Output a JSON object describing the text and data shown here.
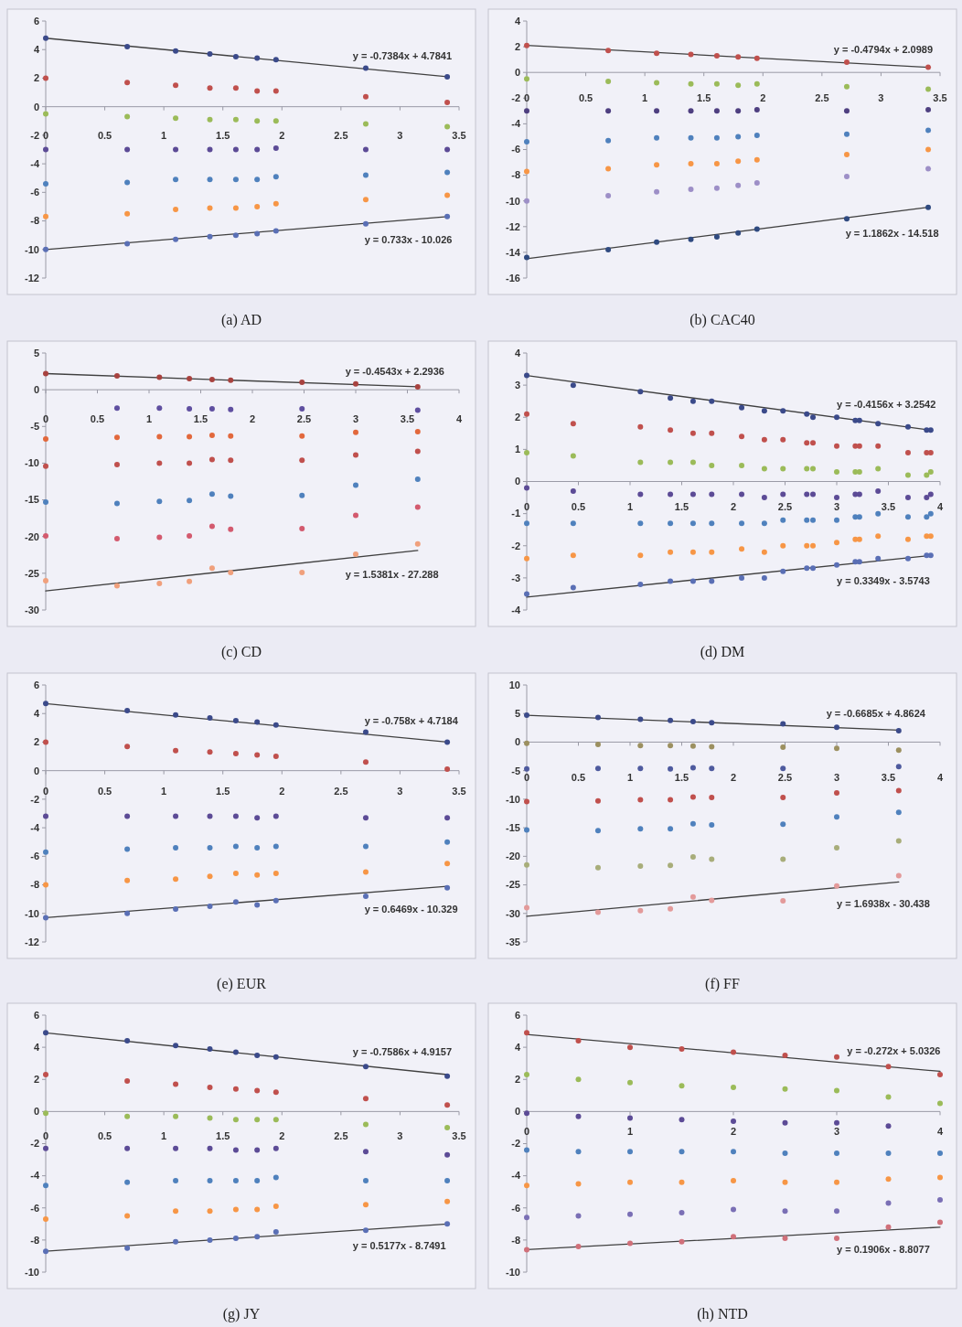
{
  "chart_data": [
    {
      "type": "scatter",
      "title": "(a) AD",
      "x": [
        0,
        0.69,
        1.1,
        1.39,
        1.61,
        1.79,
        1.95,
        2.71,
        3.4
      ],
      "xlim": [
        0,
        3.5
      ],
      "xticks": [
        0,
        0.5,
        1,
        1.5,
        2,
        2.5,
        3,
        3.5
      ],
      "ylim": [
        -12,
        6
      ],
      "yticks": [
        -12,
        -10,
        -8,
        -6,
        -4,
        -2,
        0,
        2,
        4,
        6
      ],
      "marker": "circle",
      "annotations": [
        {
          "text": "y = -0.7384x + 4.7841",
          "x": 2.6,
          "y": 2.7
        },
        {
          "text": "y = 0.733x - 10.026",
          "x": 2.7,
          "y": -8.2
        }
      ],
      "series": [
        {
          "type": "line",
          "marker": "none",
          "x": [
            0,
            3.4
          ],
          "values": [
            4.8,
            2.1
          ],
          "color": "#404040"
        },
        {
          "type": "line",
          "marker": "none",
          "x": [
            0,
            3.4
          ],
          "values": [
            -10.0,
            -7.7
          ],
          "color": "#404040"
        },
        {
          "color": "#3b4a8a",
          "values": [
            4.8,
            4.2,
            3.9,
            3.7,
            3.5,
            3.4,
            3.3,
            2.7,
            2.1
          ]
        },
        {
          "color": "#c0504d",
          "values": [
            2.0,
            1.7,
            1.5,
            1.3,
            1.3,
            1.1,
            1.1,
            0.7,
            0.3
          ]
        },
        {
          "color": "#9bbb59",
          "values": [
            -0.5,
            -0.7,
            -0.8,
            -0.9,
            -0.9,
            -1.0,
            -1.0,
            -1.2,
            -1.4
          ]
        },
        {
          "color": "#5c4b96",
          "values": [
            -3.0,
            -3.0,
            -3.0,
            -3.0,
            -3.0,
            -3.0,
            -2.9,
            -3.0,
            -3.0
          ]
        },
        {
          "color": "#4f81bd",
          "values": [
            -5.4,
            -5.3,
            -5.1,
            -5.1,
            -5.1,
            -5.1,
            -4.9,
            -4.8,
            -4.6
          ]
        },
        {
          "color": "#f79646",
          "values": [
            -7.7,
            -7.5,
            -7.2,
            -7.1,
            -7.1,
            -7.0,
            -6.8,
            -6.5,
            -6.2
          ]
        },
        {
          "color": "#5a6fb5",
          "values": [
            -10.0,
            -9.6,
            -9.3,
            -9.1,
            -9.0,
            -8.9,
            -8.7,
            -8.2,
            -7.7
          ]
        }
      ]
    },
    {
      "type": "scatter",
      "title": "(b) CAC40",
      "x": [
        0,
        0.69,
        1.1,
        1.39,
        1.61,
        1.79,
        1.95,
        2.71,
        3.4
      ],
      "xlim": [
        0,
        3.5
      ],
      "xticks": [
        0,
        0.5,
        1,
        1.5,
        2,
        2.5,
        3,
        3.5
      ],
      "ylim": [
        -16,
        4
      ],
      "yticks": [
        -16,
        -14,
        -12,
        -10,
        -8,
        -6,
        -4,
        -2,
        0,
        2,
        4
      ],
      "marker": "circle",
      "annotations": [
        {
          "text": "y = -0.4794x + 2.0989",
          "x": 2.6,
          "y": 0.8
        },
        {
          "text": "y = 1.1862x - 14.518",
          "x": 2.7,
          "y": -11.3
        }
      ],
      "series": [
        {
          "type": "line",
          "marker": "none",
          "x": [
            0,
            3.4
          ],
          "values": [
            2.1,
            0.4
          ],
          "color": "#404040"
        },
        {
          "type": "line",
          "marker": "none",
          "x": [
            0,
            3.4
          ],
          "values": [
            -14.5,
            -10.5
          ],
          "color": "#404040"
        },
        {
          "color": "#c0504d",
          "values": [
            2.1,
            1.7,
            1.5,
            1.4,
            1.3,
            1.2,
            1.1,
            0.8,
            0.4
          ]
        },
        {
          "color": "#9bbb59",
          "values": [
            -0.5,
            -0.7,
            -0.8,
            -0.9,
            -0.9,
            -1.0,
            -0.9,
            -1.1,
            -1.3
          ]
        },
        {
          "color": "#4e3f80",
          "values": [
            -3.0,
            -3.0,
            -3.0,
            -3.0,
            -3.0,
            -3.0,
            -2.9,
            -3.0,
            -2.9
          ]
        },
        {
          "color": "#4f81bd",
          "values": [
            -5.4,
            -5.3,
            -5.1,
            -5.1,
            -5.1,
            -5.0,
            -4.9,
            -4.8,
            -4.5
          ]
        },
        {
          "color": "#f79646",
          "values": [
            -7.7,
            -7.5,
            -7.2,
            -7.1,
            -7.1,
            -6.9,
            -6.8,
            -6.4,
            -6.0
          ]
        },
        {
          "color": "#9d8fc7",
          "values": [
            -10.0,
            -9.6,
            -9.3,
            -9.1,
            -9.0,
            -8.8,
            -8.6,
            -8.1,
            -7.5
          ]
        },
        {
          "color": "#2f4a80",
          "values": [
            -14.4,
            -13.8,
            -13.2,
            -13.0,
            -12.8,
            -12.5,
            -12.2,
            -11.4,
            -10.5
          ]
        }
      ]
    },
    {
      "type": "scatter",
      "title": "(c) CD",
      "x": [
        0,
        0.69,
        1.1,
        1.39,
        1.61,
        1.79,
        2.48,
        3,
        3.6
      ],
      "xlim": [
        0,
        4
      ],
      "xticks": [
        0,
        0.5,
        1,
        1.5,
        2,
        2.5,
        3,
        3.5,
        4
      ],
      "ylim": [
        -30,
        5
      ],
      "yticks": [
        -30,
        -25,
        -20,
        -15,
        -10,
        -5,
        0,
        5
      ],
      "marker": "circle",
      "annotations": [
        {
          "text": "y = -0.4543x + 2.2936",
          "x": 2.9,
          "y": 0.8
        },
        {
          "text": "y = 1.5381x - 27.288",
          "x": 2.9,
          "y": -23.0
        }
      ],
      "series": [
        {
          "type": "line",
          "marker": "none",
          "x": [
            0,
            3.6
          ],
          "values": [
            2.2,
            0.4
          ],
          "color": "#404040"
        },
        {
          "type": "line",
          "marker": "none",
          "x": [
            0,
            3.6
          ],
          "values": [
            -27.4,
            -21.9
          ],
          "color": "#404040"
        },
        {
          "color": "#a8423f",
          "values": [
            2.2,
            1.9,
            1.7,
            1.5,
            1.4,
            1.3,
            1.0,
            0.8,
            0.4
          ]
        },
        {
          "color": "#5f4fa0",
          "values": [
            null,
            -2.5,
            -2.5,
            -2.6,
            -2.6,
            -2.7,
            -2.6,
            null,
            -2.8
          ]
        },
        {
          "color": "#e2683c",
          "values": [
            -6.7,
            -6.5,
            -6.4,
            -6.4,
            -6.2,
            -6.3,
            -6.3,
            -5.8,
            -5.7
          ]
        },
        {
          "color": "#c0504d",
          "values": [
            -10.4,
            -10.2,
            -10.0,
            -10.0,
            -9.5,
            -9.6,
            -9.6,
            -8.9,
            -8.4
          ]
        },
        {
          "color": "#4f81bd",
          "values": [
            -15.3,
            -15.5,
            -15.2,
            -15.1,
            -14.2,
            -14.5,
            -14.4,
            -13.0,
            -12.2
          ]
        },
        {
          "color": "#d35a6e",
          "values": [
            -19.9,
            -20.3,
            -20.1,
            -19.9,
            -18.6,
            -19.0,
            -18.9,
            -17.1,
            -16.0
          ]
        },
        {
          "color": "#f0a07c",
          "values": [
            -26.0,
            -26.7,
            -26.4,
            -26.1,
            -24.3,
            -24.9,
            -24.9,
            -22.4,
            -21.0
          ]
        }
      ]
    },
    {
      "type": "scatter",
      "title": "(d) DM",
      "x": [
        0,
        0.45,
        1.1,
        1.39,
        1.61,
        1.79,
        2.08,
        2.3,
        2.48,
        2.71,
        2.77,
        3,
        3.18,
        3.22,
        3.4,
        3.69,
        3.87,
        3.91
      ],
      "xlim": [
        0,
        4
      ],
      "xticks": [
        0,
        0.5,
        1,
        1.5,
        2,
        2.5,
        3,
        3.5,
        4
      ],
      "ylim": [
        -4,
        4
      ],
      "yticks": [
        -4,
        -3,
        -2,
        -1,
        0,
        1,
        2,
        3,
        4
      ],
      "marker": "circle",
      "annotations": [
        {
          "text": "y = -0.4156x + 3.2542",
          "x": 3.0,
          "y": 2.0
        },
        {
          "text": "y = 0.3349x - 3.5743",
          "x": 3.0,
          "y": -2.6
        }
      ],
      "series": [
        {
          "type": "line",
          "marker": "none",
          "x": [
            0,
            3.91
          ],
          "values": [
            3.3,
            1.6
          ],
          "color": "#404040"
        },
        {
          "type": "line",
          "marker": "none",
          "x": [
            0,
            3.91
          ],
          "values": [
            -3.6,
            -2.3
          ],
          "color": "#404040"
        },
        {
          "color": "#3b4a8a",
          "values": [
            3.3,
            3.0,
            2.8,
            2.6,
            2.5,
            2.5,
            2.3,
            2.2,
            2.2,
            2.1,
            2.0,
            2.0,
            1.9,
            1.9,
            1.8,
            1.7,
            1.6,
            1.6
          ]
        },
        {
          "color": "#c0504d",
          "values": [
            2.1,
            1.8,
            1.7,
            1.6,
            1.5,
            1.5,
            1.4,
            1.3,
            1.3,
            1.2,
            1.2,
            1.1,
            1.1,
            1.1,
            1.1,
            0.9,
            0.9,
            0.9
          ]
        },
        {
          "color": "#9bbb59",
          "values": [
            0.9,
            0.8,
            0.6,
            0.6,
            0.6,
            0.5,
            0.5,
            0.4,
            0.4,
            0.4,
            0.4,
            0.3,
            0.3,
            0.3,
            0.4,
            0.2,
            0.2,
            0.3
          ]
        },
        {
          "color": "#5c4b96",
          "values": [
            -0.2,
            -0.3,
            -0.4,
            -0.4,
            -0.4,
            -0.4,
            -0.4,
            -0.5,
            -0.4,
            -0.4,
            -0.4,
            -0.5,
            -0.4,
            -0.4,
            -0.3,
            -0.5,
            -0.5,
            -0.4
          ]
        },
        {
          "color": "#4f81bd",
          "values": [
            -1.3,
            -1.3,
            -1.3,
            -1.3,
            -1.3,
            -1.3,
            -1.3,
            -1.3,
            -1.2,
            -1.2,
            -1.2,
            -1.2,
            -1.1,
            -1.1,
            -1.0,
            -1.1,
            -1.1,
            -1.0
          ]
        },
        {
          "color": "#f79646",
          "values": [
            -2.4,
            -2.3,
            -2.3,
            -2.2,
            -2.2,
            -2.2,
            -2.1,
            -2.2,
            -2.0,
            -2.0,
            -2.0,
            -1.9,
            -1.8,
            -1.8,
            -1.7,
            -1.8,
            -1.7,
            -1.7
          ]
        },
        {
          "color": "#5a6fb5",
          "values": [
            -3.5,
            -3.3,
            -3.2,
            -3.1,
            -3.1,
            -3.1,
            -3.0,
            -3.0,
            -2.8,
            -2.7,
            -2.7,
            -2.6,
            -2.5,
            -2.5,
            -2.4,
            -2.4,
            -2.3,
            -2.3
          ]
        }
      ]
    },
    {
      "type": "scatter",
      "title": "(e) EUR",
      "x": [
        0,
        0.69,
        1.1,
        1.39,
        1.61,
        1.79,
        1.95,
        2.71,
        3.4
      ],
      "xlim": [
        0,
        3.5
      ],
      "xticks": [
        0,
        0.5,
        1,
        1.5,
        2,
        2.5,
        3,
        3.5
      ],
      "ylim": [
        -12,
        6
      ],
      "yticks": [
        -12,
        -10,
        -8,
        -6,
        -4,
        -2,
        0,
        2,
        4,
        6
      ],
      "marker": "circle",
      "annotations": [
        {
          "text": "y = -0.758x + 4.7184",
          "x": 2.7,
          "y": 2.6
        },
        {
          "text": "y = 0.6469x - 10.329",
          "x": 2.7,
          "y": -8.6
        }
      ],
      "series": [
        {
          "type": "line",
          "marker": "none",
          "x": [
            0,
            3.4
          ],
          "values": [
            4.7,
            2.0
          ],
          "color": "#404040"
        },
        {
          "type": "line",
          "marker": "none",
          "x": [
            0,
            3.4
          ],
          "values": [
            -10.3,
            -8.1
          ],
          "color": "#404040"
        },
        {
          "color": "#3b4a8a",
          "values": [
            4.7,
            4.2,
            3.9,
            3.7,
            3.5,
            3.4,
            3.2,
            2.7,
            2.0
          ]
        },
        {
          "color": "#c0504d",
          "values": [
            2.0,
            1.7,
            1.4,
            1.3,
            1.2,
            1.1,
            1.0,
            0.6,
            0.1
          ]
        },
        {
          "color": "#5c4b96",
          "values": [
            -3.2,
            -3.2,
            -3.2,
            -3.2,
            -3.2,
            -3.3,
            -3.2,
            -3.3,
            -3.3
          ]
        },
        {
          "color": "#4f81bd",
          "values": [
            -5.7,
            -5.5,
            -5.4,
            -5.4,
            -5.3,
            -5.4,
            -5.3,
            -5.3,
            -5.0
          ]
        },
        {
          "color": "#f79646",
          "values": [
            -8.0,
            -7.7,
            -7.6,
            -7.4,
            -7.2,
            -7.3,
            -7.2,
            -7.1,
            -6.5
          ]
        },
        {
          "color": "#5a6fb5",
          "values": [
            -10.3,
            -10.0,
            -9.7,
            -9.5,
            -9.2,
            -9.4,
            -9.1,
            -8.8,
            -8.2
          ]
        }
      ]
    },
    {
      "type": "scatter",
      "title": "(f) FF",
      "x": [
        0,
        0.69,
        1.1,
        1.39,
        1.61,
        1.79,
        2.48,
        3,
        3.6
      ],
      "xlim": [
        0,
        4
      ],
      "xticks": [
        0,
        0.5,
        1,
        1.5,
        2,
        2.5,
        3,
        3.5,
        4
      ],
      "ylim": [
        -35,
        10
      ],
      "yticks": [
        -35,
        -30,
        -25,
        -20,
        -15,
        -10,
        -5,
        0,
        5,
        10
      ],
      "marker": "circle",
      "annotations": [
        {
          "text": "y = -0.6685x + 4.8624",
          "x": 2.9,
          "y": 2.8
        },
        {
          "text": "y = 1.6938x - 30.438",
          "x": 3.0,
          "y": -25.5
        }
      ],
      "series": [
        {
          "type": "line",
          "marker": "none",
          "x": [
            0,
            3.6
          ],
          "values": [
            4.7,
            2.1
          ],
          "color": "#404040"
        },
        {
          "type": "line",
          "marker": "none",
          "x": [
            0,
            3.6
          ],
          "values": [
            -30.5,
            -24.5
          ],
          "color": "#404040"
        },
        {
          "color": "#3b4a8a",
          "values": [
            4.7,
            4.3,
            4.0,
            3.8,
            3.6,
            3.4,
            3.2,
            2.6,
            2.0
          ]
        },
        {
          "color": "#9c9060",
          "values": [
            -0.2,
            -0.4,
            -0.6,
            -0.6,
            -0.7,
            -0.8,
            -0.9,
            -1.1,
            -1.4
          ]
        },
        {
          "color": "#4e5a9e",
          "values": [
            -4.7,
            -4.6,
            -4.6,
            -4.7,
            -4.5,
            -4.6,
            -4.6,
            null,
            -4.3
          ]
        },
        {
          "color": "#c0504d",
          "values": [
            -10.4,
            -10.3,
            -10.1,
            -10.1,
            -9.6,
            -9.7,
            -9.7,
            -8.9,
            -8.5
          ]
        },
        {
          "color": "#4f81bd",
          "values": [
            -15.4,
            -15.5,
            -15.2,
            -15.2,
            -14.3,
            -14.5,
            -14.4,
            -13.1,
            -12.3
          ]
        },
        {
          "color": "#a8ad7a",
          "values": [
            -21.5,
            -22.0,
            -21.7,
            -21.6,
            -20.1,
            -20.5,
            -20.5,
            -18.5,
            -17.3
          ]
        },
        {
          "color": "#e39a9a",
          "values": [
            -29.0,
            -29.8,
            -29.5,
            -29.2,
            -27.1,
            -27.7,
            -27.8,
            -25.2,
            -23.4
          ]
        }
      ]
    },
    {
      "type": "scatter",
      "title": "(g) JY",
      "x": [
        0,
        0.69,
        1.1,
        1.39,
        1.61,
        1.79,
        1.95,
        2.71,
        3.4
      ],
      "xlim": [
        0,
        3.5
      ],
      "xticks": [
        0,
        0.5,
        1,
        1.5,
        2,
        2.5,
        3,
        3.5
      ],
      "ylim": [
        -10,
        6
      ],
      "yticks": [
        -10,
        -8,
        -6,
        -4,
        -2,
        0,
        2,
        4,
        6
      ],
      "marker": "circle",
      "annotations": [
        {
          "text": "y = -0.7586x + 4.9157",
          "x": 2.6,
          "y": 2.9
        },
        {
          "text": "y = 0.5177x - 8.7491",
          "x": 2.6,
          "y": -7.4
        }
      ],
      "series": [
        {
          "type": "line",
          "marker": "none",
          "x": [
            0,
            3.4
          ],
          "values": [
            4.9,
            2.3
          ],
          "color": "#404040"
        },
        {
          "type": "line",
          "marker": "none",
          "x": [
            0,
            3.4
          ],
          "values": [
            -8.7,
            -7.0
          ],
          "color": "#404040"
        },
        {
          "color": "#3b4a8a",
          "values": [
            4.9,
            4.4,
            4.1,
            3.9,
            3.7,
            3.5,
            3.4,
            2.8,
            2.2
          ]
        },
        {
          "color": "#c0504d",
          "values": [
            2.3,
            1.9,
            1.7,
            1.5,
            1.4,
            1.3,
            1.2,
            0.8,
            0.4
          ]
        },
        {
          "color": "#9bbb59",
          "values": [
            -0.1,
            -0.3,
            -0.3,
            -0.4,
            -0.5,
            -0.5,
            -0.5,
            -0.8,
            -1.0
          ]
        },
        {
          "color": "#5c4b96",
          "values": [
            -2.3,
            -2.3,
            -2.3,
            -2.3,
            -2.4,
            -2.4,
            -2.3,
            -2.5,
            -2.7
          ]
        },
        {
          "color": "#4f81bd",
          "values": [
            -4.6,
            -4.4,
            -4.3,
            -4.3,
            -4.3,
            -4.3,
            -4.1,
            -4.3,
            -4.3
          ]
        },
        {
          "color": "#f79646",
          "values": [
            -6.7,
            -6.5,
            -6.2,
            -6.2,
            -6.1,
            -6.1,
            -5.9,
            -5.8,
            -5.6
          ]
        },
        {
          "color": "#5a6fb5",
          "values": [
            -8.7,
            -8.5,
            -8.1,
            -8.0,
            -7.9,
            -7.8,
            -7.5,
            -7.4,
            -7.0
          ]
        }
      ]
    },
    {
      "type": "scatter",
      "title": "(h) NTD",
      "x": [
        0,
        0.5,
        1,
        1.5,
        2,
        2.5,
        3,
        3.5,
        4
      ],
      "xlim": [
        0,
        4
      ],
      "xticks": [
        0,
        1,
        2,
        3,
        4
      ],
      "ylim": [
        -10,
        6
      ],
      "yticks": [
        -10,
        -8,
        -6,
        -4,
        -2,
        0,
        2,
        4,
        6
      ],
      "marker": "circle",
      "annotations": [
        {
          "text": "y = -0.272x + 5.0326",
          "x": 3.1,
          "y": 3.0
        },
        {
          "text": "y = 0.1906x - 8.8077",
          "x": 3.0,
          "y": -7.6
        }
      ],
      "series": [
        {
          "type": "line",
          "marker": "none",
          "x": [
            0,
            4
          ],
          "values": [
            4.8,
            2.5
          ],
          "color": "#404040"
        },
        {
          "type": "line",
          "marker": "none",
          "x": [
            0,
            4
          ],
          "values": [
            -8.6,
            -7.2
          ],
          "color": "#404040"
        },
        {
          "color": "#c0504d",
          "values": [
            4.9,
            4.4,
            4.0,
            3.9,
            3.7,
            3.5,
            3.4,
            2.8,
            2.3
          ]
        },
        {
          "color": "#9bbb59",
          "values": [
            2.3,
            2.0,
            1.8,
            1.6,
            1.5,
            1.4,
            1.3,
            0.9,
            0.5
          ]
        },
        {
          "color": "#5c4b96",
          "values": [
            -0.1,
            -0.3,
            -0.4,
            -0.5,
            -0.6,
            -0.7,
            -0.7,
            -0.9,
            null
          ]
        },
        {
          "color": "#4f81bd",
          "values": [
            -2.4,
            -2.5,
            -2.5,
            -2.5,
            -2.5,
            -2.6,
            -2.6,
            -2.6,
            -2.6
          ]
        },
        {
          "color": "#f79646",
          "values": [
            -4.6,
            -4.5,
            -4.4,
            -4.4,
            -4.3,
            -4.4,
            -4.4,
            -4.2,
            -4.1
          ]
        },
        {
          "color": "#7a6fb5",
          "values": [
            -6.6,
            -6.5,
            -6.4,
            -6.3,
            -6.1,
            -6.2,
            -6.2,
            -5.7,
            -5.5
          ]
        },
        {
          "color": "#d0707a",
          "values": [
            -8.6,
            -8.4,
            -8.2,
            -8.1,
            -7.8,
            -7.9,
            -7.9,
            -7.2,
            -6.9
          ]
        }
      ]
    }
  ]
}
